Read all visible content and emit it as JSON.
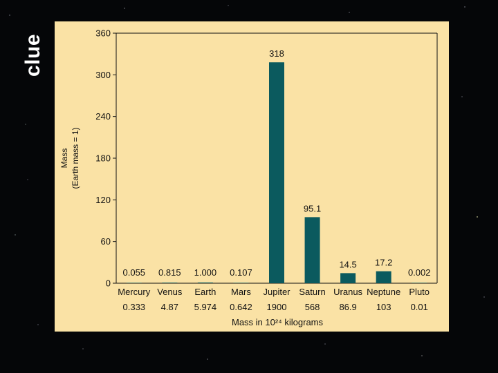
{
  "slide": {
    "clue_text": "clue"
  },
  "chart_data": {
    "type": "bar",
    "title": "",
    "categories": [
      "Mercury",
      "Venus",
      "Earth",
      "Mars",
      "Jupiter",
      "Saturn",
      "Uranus",
      "Neptune",
      "Pluto"
    ],
    "values": [
      0.055,
      0.815,
      1.0,
      0.107,
      318,
      95.1,
      14.5,
      17.2,
      0.002
    ],
    "value_labels": [
      "0.055",
      "0.815",
      "1.000",
      "0.107",
      "318",
      "95.1",
      "14.5",
      "17.2",
      "0.002"
    ],
    "mass_1e24_kg": [
      "0.333",
      "4.87",
      "5.974",
      "0.642",
      "1900",
      "568",
      "86.9",
      "103",
      "0.01"
    ],
    "ylabel_line1": "Mass",
    "ylabel_line2": "(Earth mass = 1)",
    "xlabel": "Mass in 10²⁴ kilograms",
    "ylim": [
      0,
      360
    ],
    "yticks": [
      0,
      60,
      120,
      180,
      240,
      300,
      360
    ],
    "grid": false,
    "colors": {
      "bar": "#0b5a5e",
      "panel_bg": "#fae2a5",
      "axis": "#111111"
    }
  }
}
